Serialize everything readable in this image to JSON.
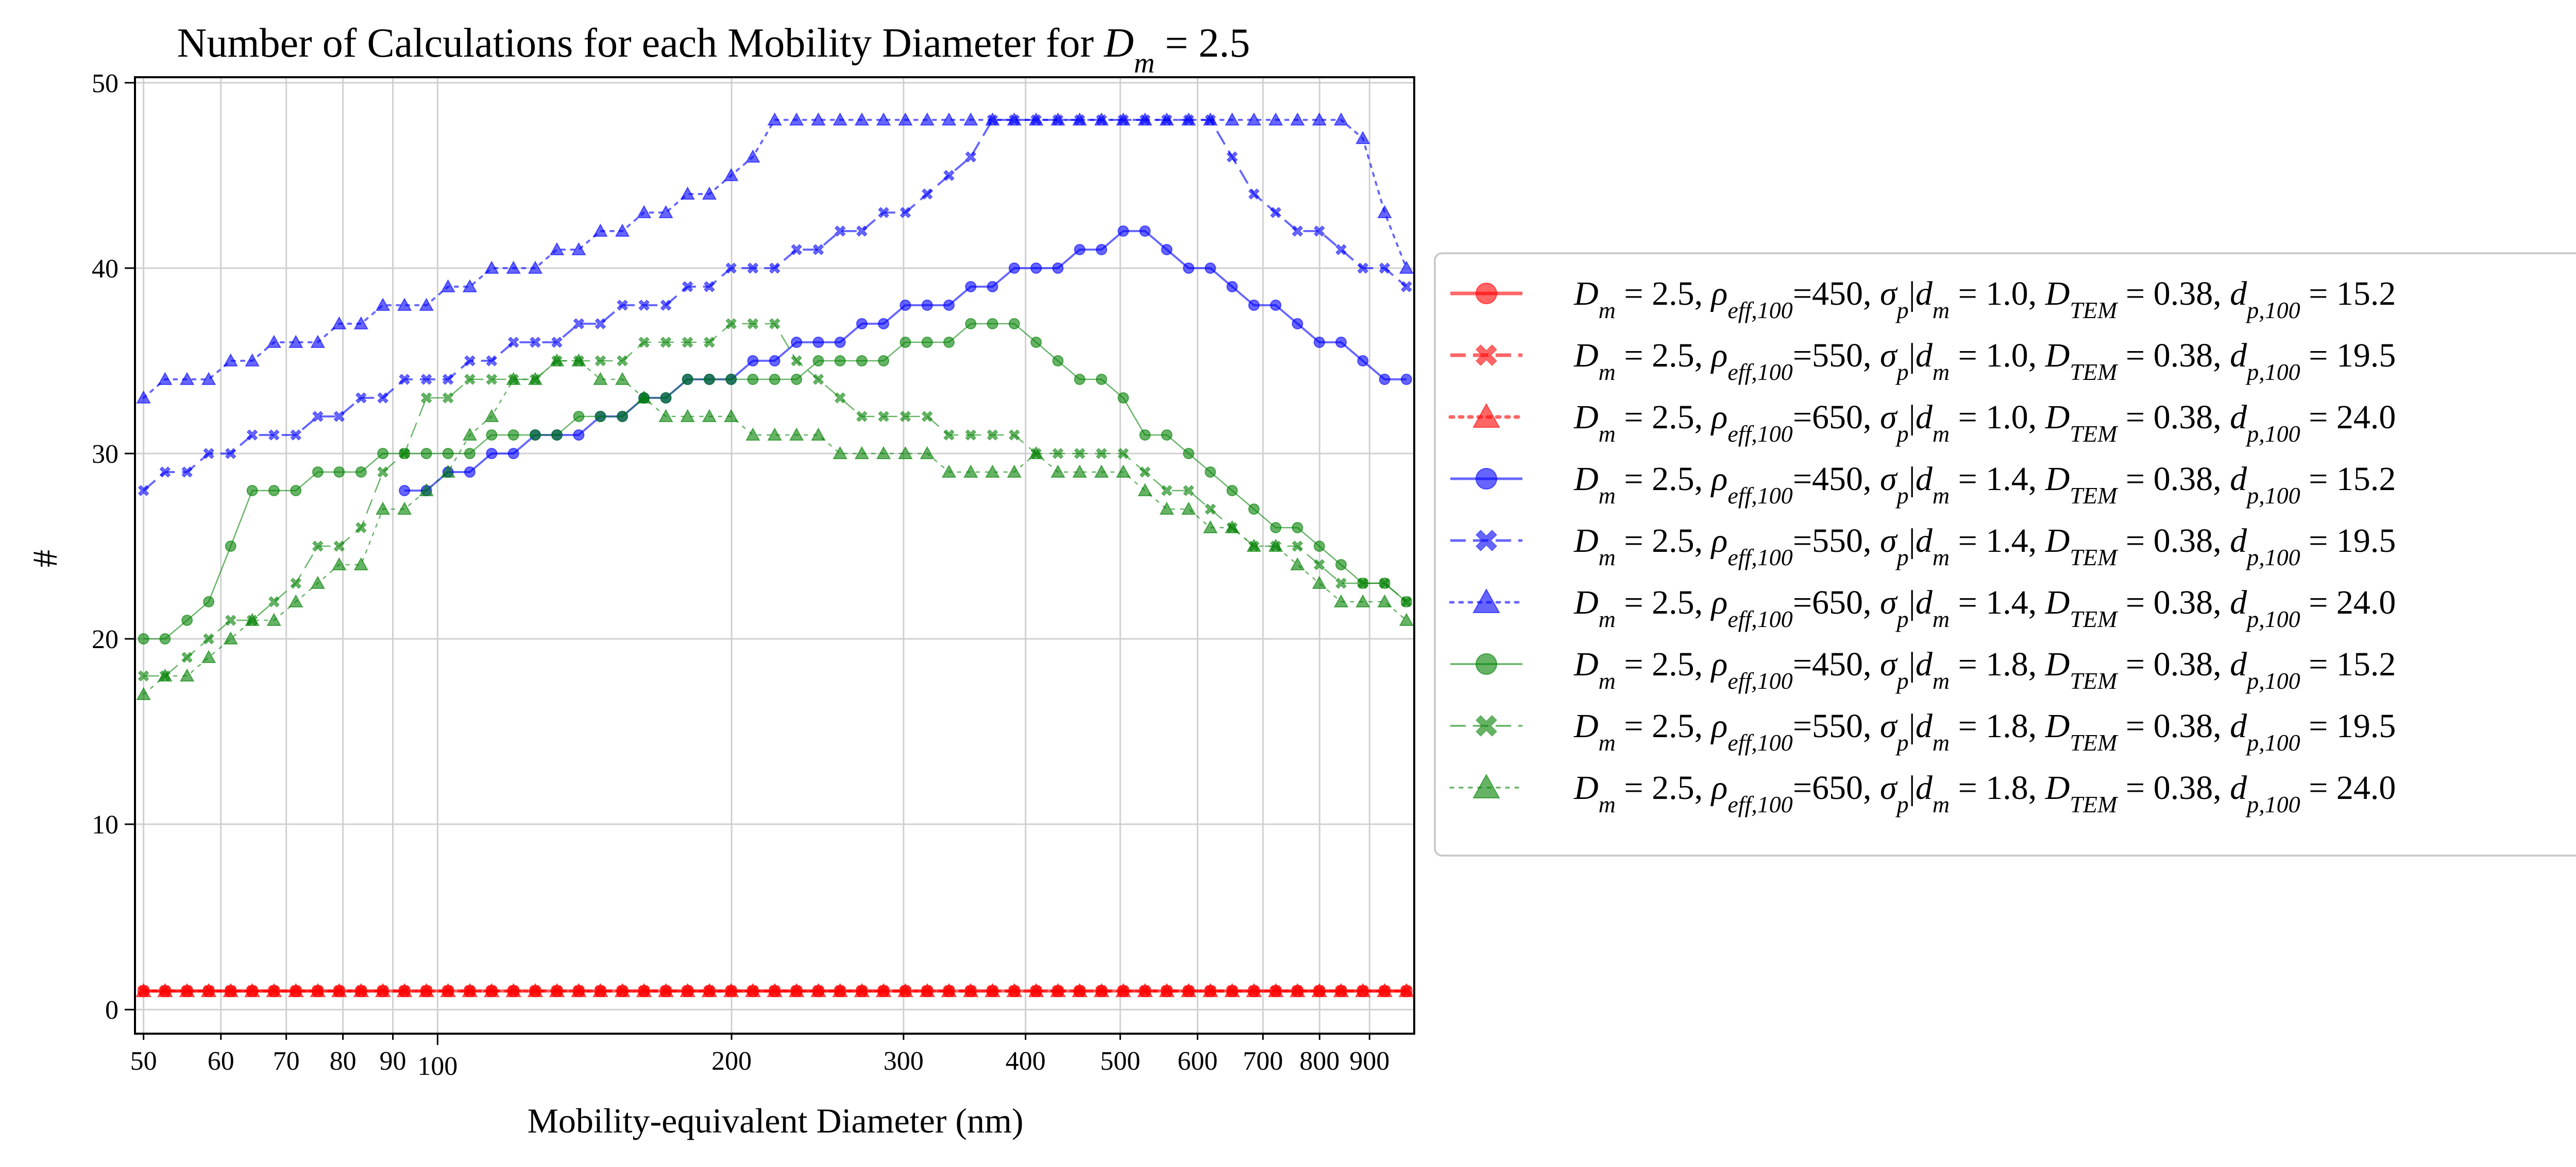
{
  "chart_data": {
    "type": "line",
    "title_text": "Number of Calculations for each Mobility Diameter for ",
    "title_math": "D",
    "title_math_sub": "m",
    "title_math_value": " = 2.5",
    "xlabel": "Mobility-equivalent Diameter (nm)",
    "ylabel": "#",
    "x_scale": "log",
    "xlim": [
      49,
      1000
    ],
    "ylim": [
      -1.3,
      50.3
    ],
    "x_ticks": [
      {
        "value": 50,
        "label": "50"
      },
      {
        "value": 60,
        "label": "60"
      },
      {
        "value": 70,
        "label": "70"
      },
      {
        "value": 80,
        "label": "80"
      },
      {
        "value": 90,
        "label": "90"
      },
      {
        "value": 100,
        "label": "100"
      },
      {
        "value": 200,
        "label": "200"
      },
      {
        "value": 300,
        "label": "300"
      },
      {
        "value": 400,
        "label": "400"
      },
      {
        "value": 500,
        "label": "500"
      },
      {
        "value": 600,
        "label": "600"
      },
      {
        "value": 700,
        "label": "700"
      },
      {
        "value": 800,
        "label": "800"
      },
      {
        "value": 900,
        "label": "900"
      }
    ],
    "y_ticks": [
      {
        "value": 0,
        "label": "0"
      },
      {
        "value": 10,
        "label": "10"
      },
      {
        "value": 20,
        "label": "20"
      },
      {
        "value": 30,
        "label": "30"
      },
      {
        "value": 40,
        "label": "40"
      },
      {
        "value": 50,
        "label": "50"
      }
    ],
    "grid": true,
    "legend_placement": "outside right",
    "x": [
      50,
      52.6,
      55.4,
      58.3,
      61.4,
      64.6,
      68,
      71.6,
      75.4,
      79.3,
      83.5,
      87.9,
      92.5,
      97.4,
      102.5,
      107.9,
      113.6,
      119.6,
      125.9,
      132.5,
      139.5,
      146.8,
      154.6,
      162.7,
      171.3,
      180.3,
      189.8,
      199.8,
      210.3,
      221.4,
      233.1,
      245.4,
      258.3,
      271.9,
      286.2,
      301.3,
      317.2,
      333.9,
      351.5,
      370,
      389.5,
      410.1,
      431.7,
      454.4,
      478.4,
      503.6,
      530.1,
      558,
      587.5,
      618.4,
      651,
      685.3,
      721.4,
      759.4,
      799.5,
      841.6,
      885.9,
      932.6,
      981.8
    ],
    "series": [
      {
        "legend": "rho=450, sigma=1.0, dp=15.2",
        "rho": "450",
        "sigma": "1.0",
        "dp": "15.2",
        "color": "#ff0000",
        "dash": "solid",
        "marker": "circle",
        "opacity": 0.6,
        "line_width": 6,
        "values": [
          1,
          1,
          1,
          1,
          1,
          1,
          1,
          1,
          1,
          1,
          1,
          1,
          1,
          1,
          1,
          1,
          1,
          1,
          1,
          1,
          1,
          1,
          1,
          1,
          1,
          1,
          1,
          1,
          1,
          1,
          1,
          1,
          1,
          1,
          1,
          1,
          1,
          1,
          1,
          1,
          1,
          1,
          1,
          1,
          1,
          1,
          1,
          1,
          1,
          1,
          1,
          1,
          1,
          1,
          1,
          1,
          1,
          1,
          1
        ]
      },
      {
        "legend": "rho=550, sigma=1.0, dp=19.5",
        "rho": "550",
        "sigma": "1.0",
        "dp": "19.5",
        "color": "#ff0000",
        "dash": "dashed",
        "marker": "x",
        "opacity": 0.6,
        "line_width": 6,
        "values": [
          1,
          1,
          1,
          1,
          1,
          1,
          1,
          1,
          1,
          1,
          1,
          1,
          1,
          1,
          1,
          1,
          1,
          1,
          1,
          1,
          1,
          1,
          1,
          1,
          1,
          1,
          1,
          1,
          1,
          1,
          1,
          1,
          1,
          1,
          1,
          1,
          1,
          1,
          1,
          1,
          1,
          1,
          1,
          1,
          1,
          1,
          1,
          1,
          1,
          1,
          1,
          1,
          1,
          1,
          1,
          1,
          1,
          1,
          1
        ]
      },
      {
        "legend": "rho=650, sigma=1.0, dp=24.0",
        "rho": "650",
        "sigma": "1.0",
        "dp": "24.0",
        "color": "#ff0000",
        "dash": "dotted",
        "marker": "triangle",
        "opacity": 0.6,
        "line_width": 6,
        "values": [
          1,
          1,
          1,
          1,
          1,
          1,
          1,
          1,
          1,
          1,
          1,
          1,
          1,
          1,
          1,
          1,
          1,
          1,
          1,
          1,
          1,
          1,
          1,
          1,
          1,
          1,
          1,
          1,
          1,
          1,
          1,
          1,
          1,
          1,
          1,
          1,
          1,
          1,
          1,
          1,
          1,
          1,
          1,
          1,
          1,
          1,
          1,
          1,
          1,
          1,
          1,
          1,
          1,
          1,
          1,
          1,
          1,
          1,
          1
        ]
      },
      {
        "legend": "rho=450, sigma=1.4, dp=15.2",
        "rho": "450",
        "sigma": "1.4",
        "dp": "15.2",
        "color": "#0000ff",
        "dash": "solid",
        "marker": "circle",
        "opacity": 0.6,
        "line_width": 4,
        "values": [
          null,
          null,
          null,
          null,
          null,
          null,
          null,
          null,
          null,
          null,
          null,
          null,
          28,
          28,
          29,
          29,
          30,
          30,
          31,
          31,
          31,
          32,
          32,
          33,
          33,
          34,
          34,
          34,
          35,
          35,
          36,
          36,
          36,
          37,
          37,
          38,
          38,
          38,
          39,
          39,
          40,
          40,
          40,
          41,
          41,
          42,
          42,
          41,
          40,
          40,
          39,
          38,
          38,
          37,
          36,
          36,
          35,
          34,
          34
        ]
      },
      {
        "legend": "rho=550, sigma=1.4, dp=19.5",
        "rho": "550",
        "sigma": "1.4",
        "dp": "19.5",
        "color": "#0000ff",
        "dash": "dashed",
        "marker": "x",
        "opacity": 0.6,
        "line_width": 4,
        "values": [
          28,
          29,
          29,
          30,
          30,
          31,
          31,
          31,
          32,
          32,
          33,
          33,
          34,
          34,
          34,
          35,
          35,
          36,
          36,
          36,
          37,
          37,
          38,
          38,
          38,
          39,
          39,
          40,
          40,
          40,
          41,
          41,
          42,
          42,
          43,
          43,
          44,
          45,
          46,
          48,
          48,
          48,
          48,
          48,
          48,
          48,
          48,
          48,
          48,
          48,
          46,
          44,
          43,
          42,
          42,
          41,
          40,
          40,
          39
        ]
      },
      {
        "legend": "rho=650, sigma=1.4, dp=24.0",
        "rho": "650",
        "sigma": "1.4",
        "dp": "24.0",
        "color": "#0000ff",
        "dash": "dotted",
        "marker": "triangle",
        "opacity": 0.6,
        "line_width": 4,
        "values": [
          33,
          34,
          34,
          34,
          35,
          35,
          36,
          36,
          36,
          37,
          37,
          38,
          38,
          38,
          39,
          39,
          40,
          40,
          40,
          41,
          41,
          42,
          42,
          43,
          43,
          44,
          44,
          45,
          46,
          48,
          48,
          48,
          48,
          48,
          48,
          48,
          48,
          48,
          48,
          48,
          48,
          48,
          48,
          48,
          48,
          48,
          48,
          48,
          48,
          48,
          48,
          48,
          48,
          48,
          48,
          48,
          47,
          43,
          40
        ]
      },
      {
        "legend": "rho=450, sigma=1.8, dp=15.2",
        "rho": "450",
        "sigma": "1.8",
        "dp": "15.2",
        "color": "#008000",
        "dash": "solid",
        "marker": "circle",
        "opacity": 0.6,
        "line_width": 2.5,
        "values": [
          20,
          20,
          21,
          22,
          25,
          28,
          28,
          28,
          29,
          29,
          29,
          30,
          30,
          30,
          30,
          30,
          31,
          31,
          31,
          31,
          32,
          32,
          32,
          33,
          33,
          34,
          34,
          34,
          34,
          34,
          34,
          35,
          35,
          35,
          35,
          36,
          36,
          36,
          37,
          37,
          37,
          36,
          35,
          34,
          34,
          33,
          31,
          31,
          30,
          29,
          28,
          27,
          26,
          26,
          25,
          24,
          23,
          23,
          22
        ]
      },
      {
        "legend": "rho=550, sigma=1.8, dp=19.5",
        "rho": "550",
        "sigma": "1.8",
        "dp": "19.5",
        "color": "#008000",
        "dash": "dashed",
        "marker": "x",
        "opacity": 0.6,
        "line_width": 2.5,
        "values": [
          18,
          18,
          19,
          20,
          21,
          21,
          22,
          23,
          25,
          25,
          26,
          29,
          30,
          33,
          33,
          34,
          34,
          34,
          34,
          35,
          35,
          35,
          35,
          36,
          36,
          36,
          36,
          37,
          37,
          37,
          35,
          34,
          33,
          32,
          32,
          32,
          32,
          31,
          31,
          31,
          31,
          30,
          30,
          30,
          30,
          30,
          29,
          28,
          28,
          27,
          26,
          25,
          25,
          25,
          24,
          23,
          23,
          23,
          22
        ]
      },
      {
        "legend": "rho=650, sigma=1.8, dp=24.0",
        "rho": "650",
        "sigma": "1.8",
        "dp": "24.0",
        "color": "#008000",
        "dash": "dotted",
        "marker": "triangle",
        "opacity": 0.6,
        "line_width": 2.5,
        "values": [
          17,
          18,
          18,
          19,
          20,
          21,
          21,
          22,
          23,
          24,
          24,
          27,
          27,
          28,
          29,
          31,
          32,
          34,
          34,
          35,
          35,
          34,
          34,
          33,
          32,
          32,
          32,
          32,
          31,
          31,
          31,
          31,
          30,
          30,
          30,
          30,
          30,
          29,
          29,
          29,
          29,
          30,
          29,
          29,
          29,
          29,
          28,
          27,
          27,
          26,
          26,
          25,
          25,
          24,
          23,
          22,
          22,
          22,
          21
        ]
      }
    ]
  }
}
